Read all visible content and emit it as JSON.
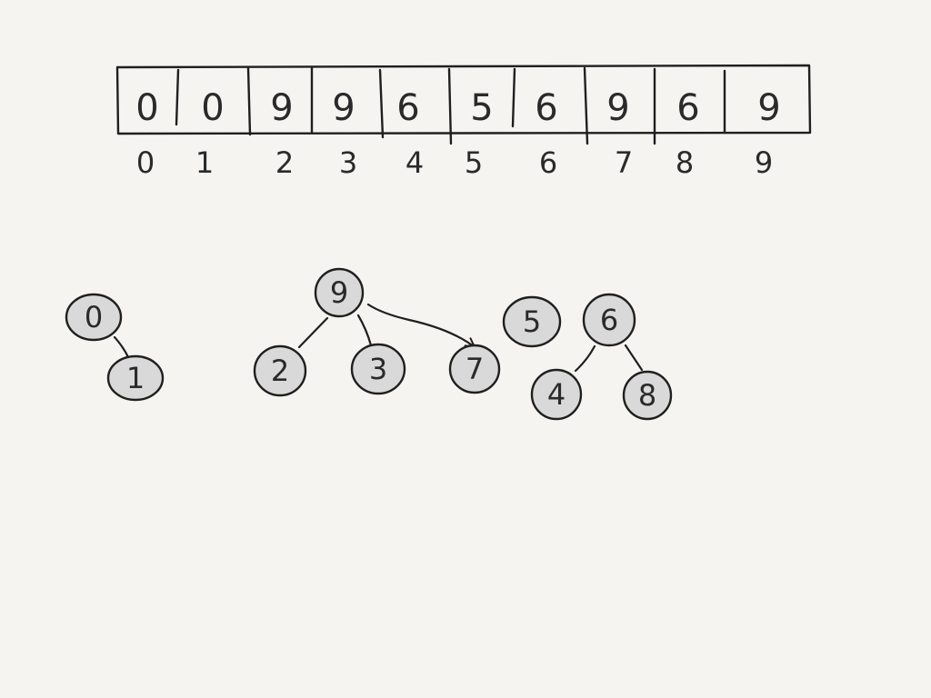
{
  "array": {
    "values": [
      "0",
      "0",
      "9",
      "9",
      "6",
      "5",
      "6",
      "9",
      "6",
      "9"
    ],
    "indices": [
      "0",
      "1",
      "2",
      "3",
      "4",
      "5",
      "6",
      "7",
      "8",
      "9"
    ]
  },
  "trees": [
    {
      "root": "0",
      "nodes": [
        {
          "id": "n0",
          "label": "0"
        },
        {
          "id": "n1",
          "label": "1"
        }
      ],
      "edges": [
        {
          "from": "n1",
          "to": "n0",
          "arrow": false
        }
      ]
    },
    {
      "root": "9",
      "nodes": [
        {
          "id": "n9",
          "label": "9"
        },
        {
          "id": "n2",
          "label": "2"
        },
        {
          "id": "n3",
          "label": "3"
        },
        {
          "id": "n7",
          "label": "7"
        }
      ],
      "edges": [
        {
          "from": "n2",
          "to": "n9",
          "arrow": false
        },
        {
          "from": "n3",
          "to": "n9",
          "arrow": false
        },
        {
          "from": "n9",
          "to": "n7",
          "arrow": true
        }
      ]
    },
    {
      "root": "5",
      "nodes": [
        {
          "id": "n5",
          "label": "5"
        }
      ],
      "edges": []
    },
    {
      "root": "6",
      "nodes": [
        {
          "id": "n6",
          "label": "6"
        },
        {
          "id": "n4",
          "label": "4"
        },
        {
          "id": "n8",
          "label": "8"
        }
      ],
      "edges": [
        {
          "from": "n4",
          "to": "n6",
          "arrow": false
        },
        {
          "from": "n8",
          "to": "n6",
          "arrow": false
        }
      ]
    }
  ]
}
